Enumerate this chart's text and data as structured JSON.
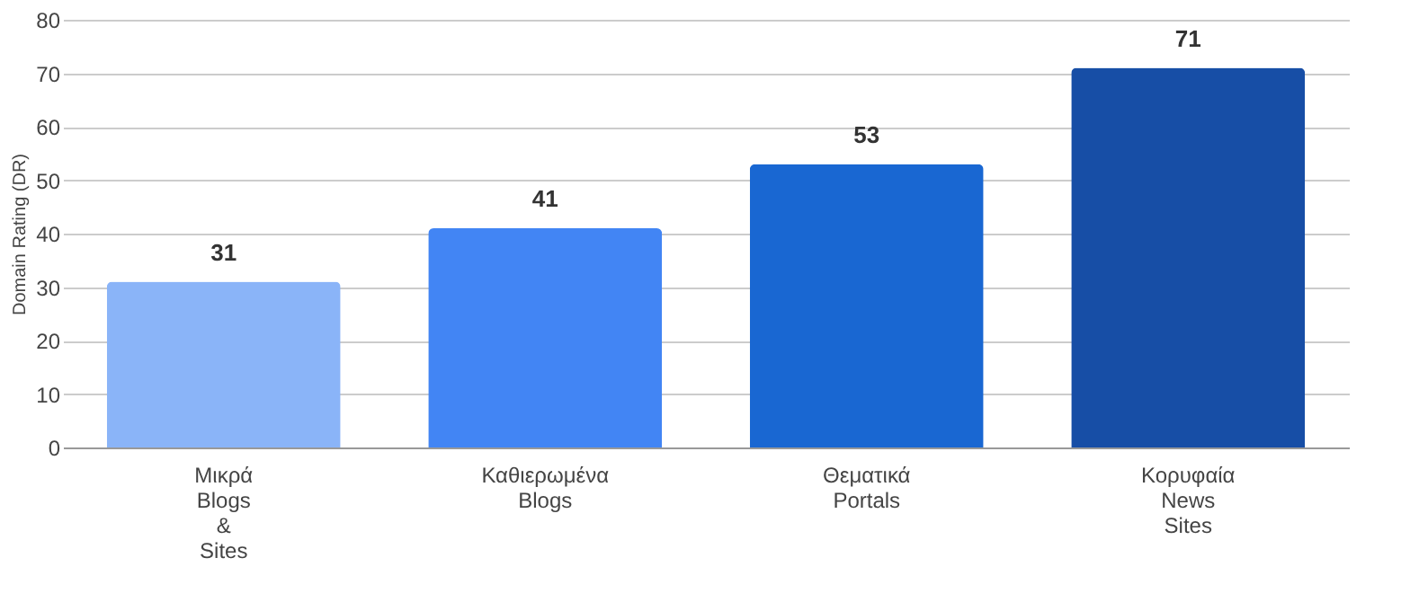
{
  "chart_data": {
    "type": "bar",
    "ylabel": "Domain Rating (DR)",
    "categories": [
      "Μικρά Blogs & Sites",
      "Καθιερωμένα Blogs",
      "Θεματικά Portals",
      "Κορυφαία News Sites"
    ],
    "values": [
      31,
      41,
      53,
      71
    ],
    "colors": [
      "#8ab4f8",
      "#4285f4",
      "#1967d2",
      "#174ea6"
    ],
    "ylim": [
      0,
      80
    ],
    "yticks": [
      0,
      10,
      20,
      30,
      40,
      50,
      60,
      70,
      80
    ],
    "grid": "y",
    "data_labels": true
  }
}
